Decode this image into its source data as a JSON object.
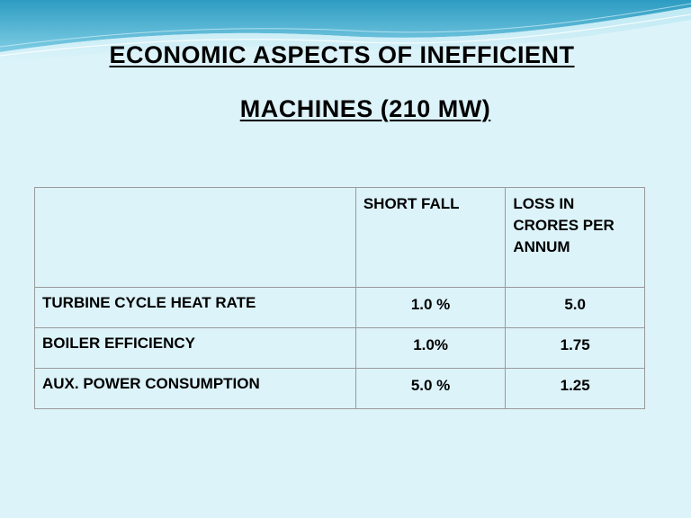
{
  "slide": {
    "title_line1": "ECONOMIC ASPECTS OF INEFFICIENT",
    "title_line2": "MACHINES (210 MW)"
  },
  "table": {
    "headers": {
      "blank": "",
      "short_fall": "SHORT FALL",
      "loss": "LOSS IN CRORES PER ANNUM"
    },
    "rows": [
      {
        "label": "TURBINE CYCLE HEAT RATE",
        "short_fall": "1.0 %",
        "loss": "5.0"
      },
      {
        "label": "BOILER EFFICIENCY",
        "short_fall": "1.0%",
        "loss": "1.75"
      },
      {
        "label": "AUX. POWER CONSUMPTION",
        "short_fall": "5.0 %",
        "loss": "1.25"
      }
    ]
  },
  "colors": {
    "background": "#dcf3f9",
    "wave_dark": "#3aa6c8",
    "wave_light": "#8fd3e6",
    "table_border": "#9a9a9a"
  }
}
